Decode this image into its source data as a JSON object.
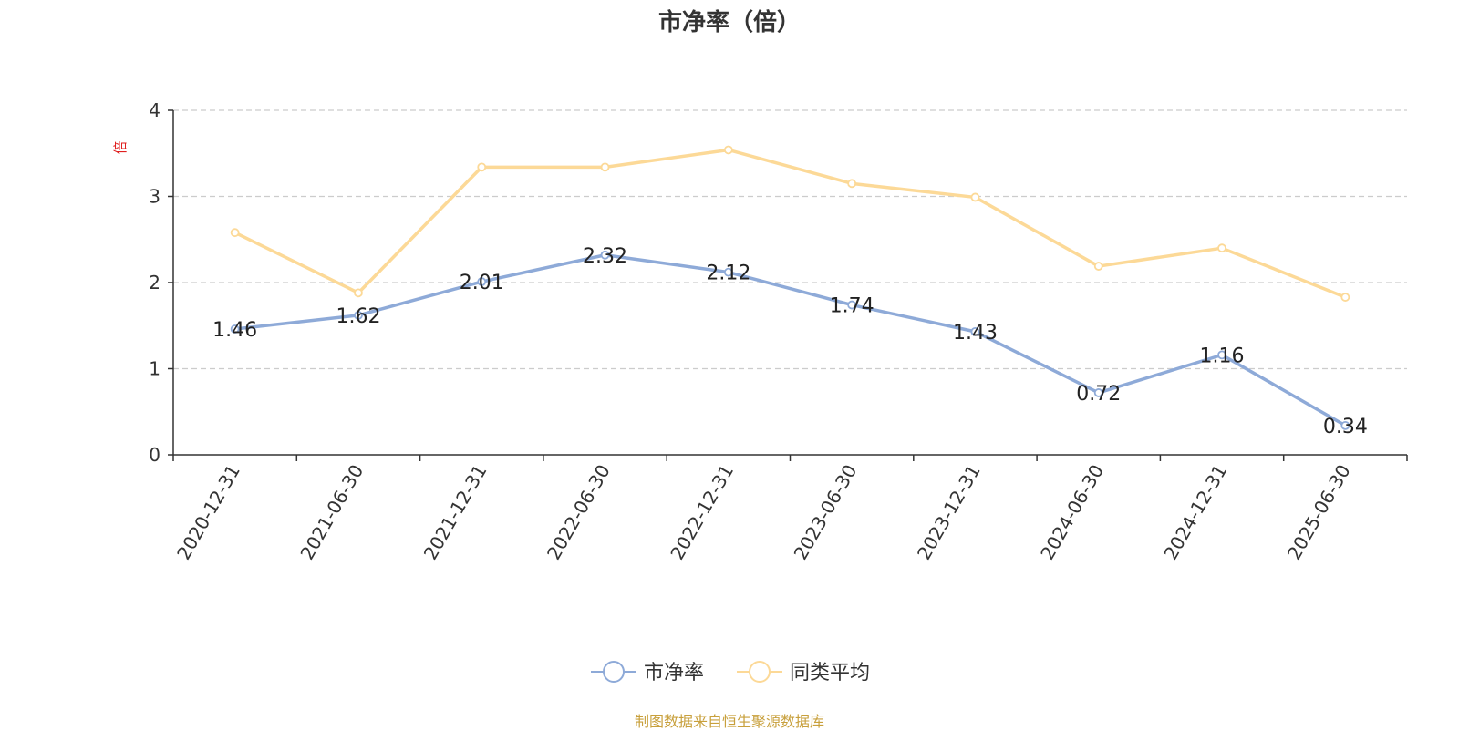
{
  "chart_data": {
    "type": "line",
    "title": "市净率（倍）",
    "ylabel": "倍",
    "categories": [
      "2020-12-31",
      "2021-06-30",
      "2021-12-31",
      "2022-06-30",
      "2022-12-31",
      "2023-06-30",
      "2023-12-31",
      "2024-06-30",
      "2024-12-31",
      "2025-06-30"
    ],
    "ylim": [
      0,
      4
    ],
    "yticks": [
      0,
      1,
      2,
      3,
      4
    ],
    "grid": true,
    "legend_position": "bottom-center",
    "series": [
      {
        "name": "市净率",
        "values": [
          1.46,
          1.62,
          2.01,
          2.32,
          2.12,
          1.74,
          1.43,
          0.72,
          1.16,
          0.34
        ],
        "color": "#8eaad8",
        "labels": true
      },
      {
        "name": "同类平均",
        "values": [
          2.58,
          1.88,
          3.34,
          3.34,
          3.54,
          3.15,
          2.99,
          2.19,
          2.4,
          1.83
        ],
        "color": "#fcd997",
        "labels": false
      }
    ]
  },
  "footer": {
    "source": "制图数据来自恒生聚源数据库"
  }
}
